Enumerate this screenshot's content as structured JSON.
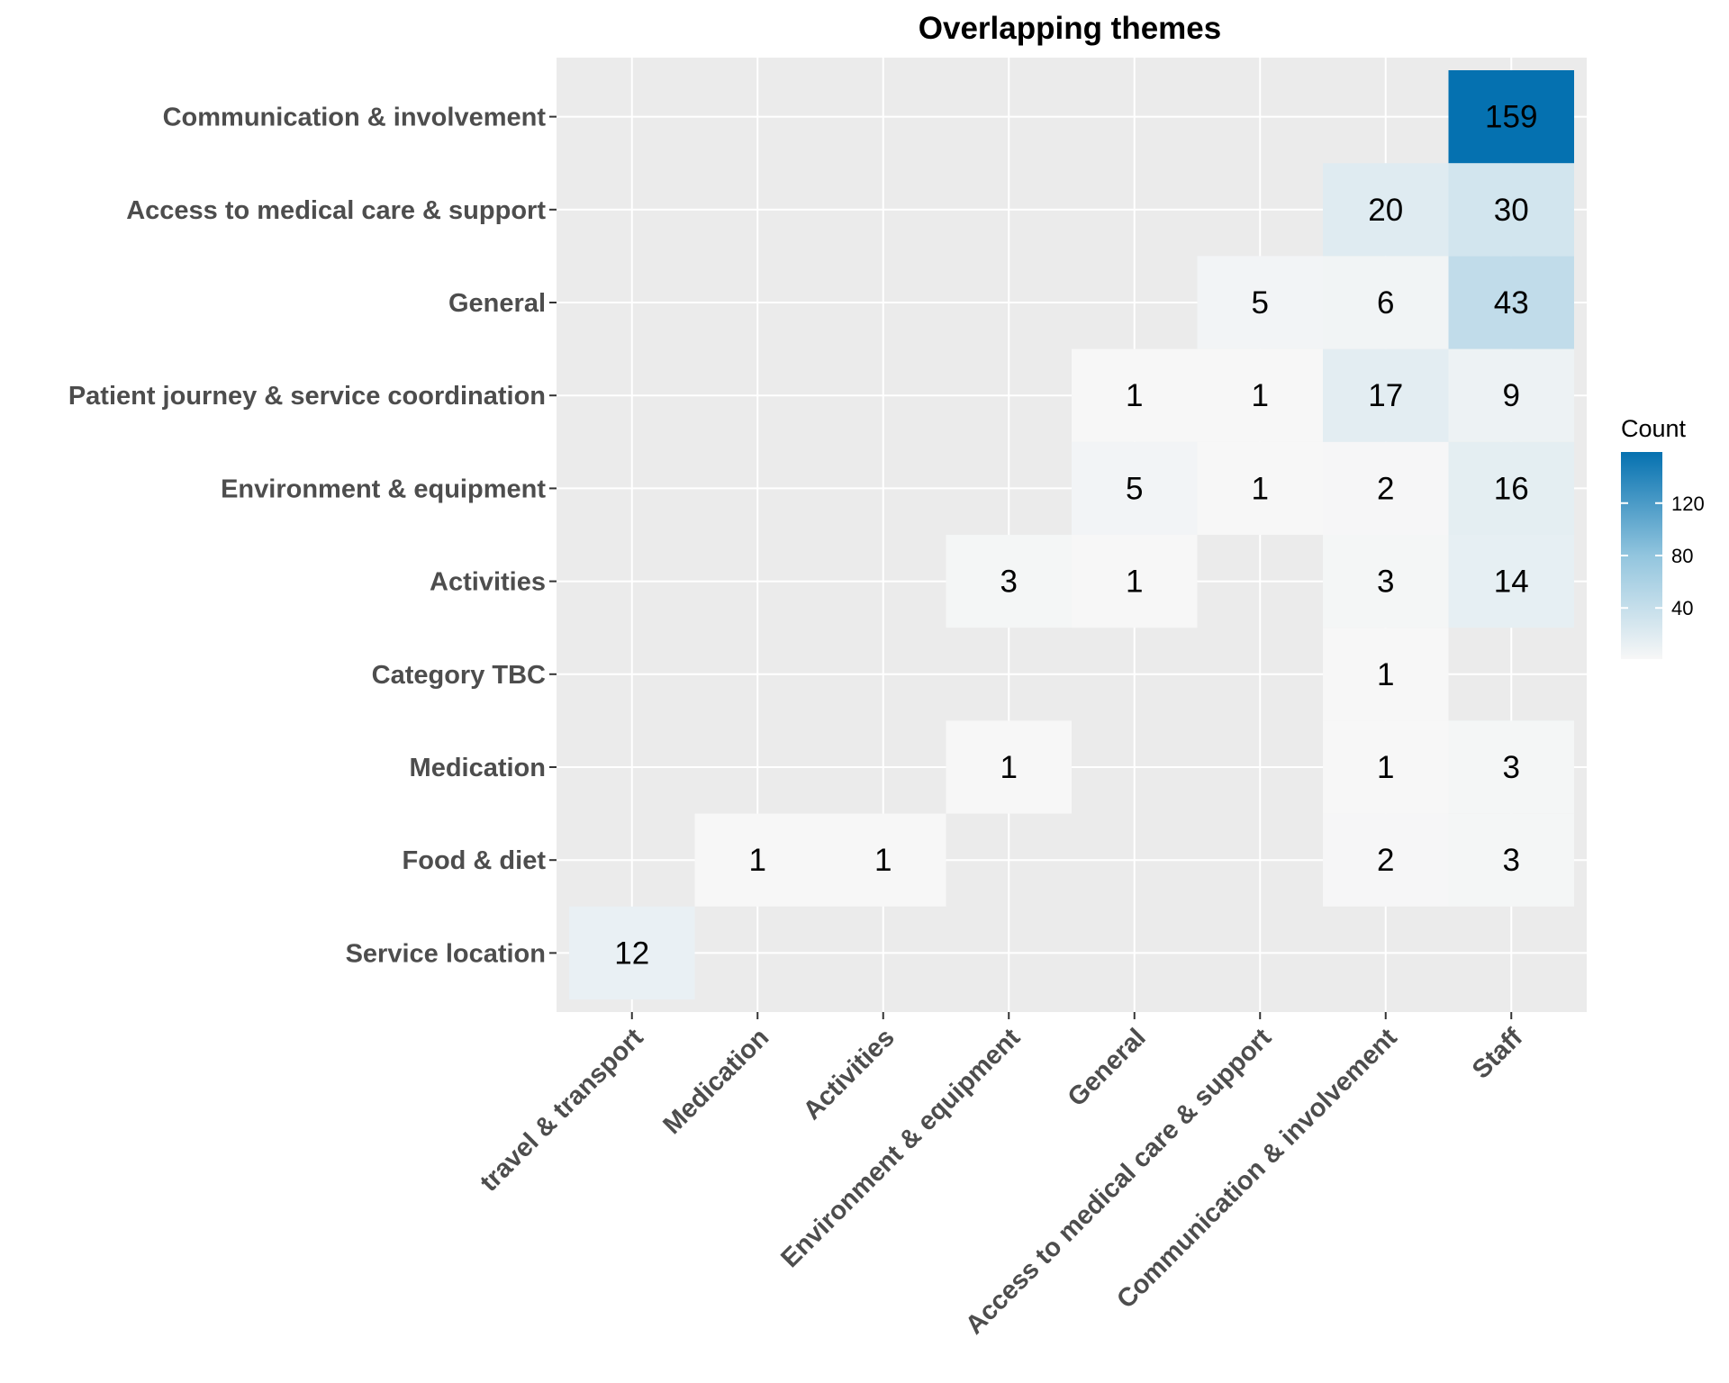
{
  "chart_data": {
    "type": "heatmap",
    "title": "Overlapping themes",
    "xlabel": "",
    "ylabel": "",
    "x_categories": [
      "travel & transport",
      "Medication",
      "Activities",
      "Environment & equipment",
      "General",
      "Access to medical care & support",
      "Communication & involvement",
      "Staff"
    ],
    "y_categories": [
      "Service location",
      "Food & diet",
      "Medication",
      "Category TBC",
      "Activities",
      "Environment & equipment",
      "Patient journey & service coordination",
      "General",
      "Access to medical care & support",
      "Communication & involvement"
    ],
    "cells": [
      {
        "x": "travel & transport",
        "y": "Service location",
        "value": 12
      },
      {
        "x": "Medication",
        "y": "Food & diet",
        "value": 1
      },
      {
        "x": "Activities",
        "y": "Food & diet",
        "value": 1
      },
      {
        "x": "Communication & involvement",
        "y": "Food & diet",
        "value": 2
      },
      {
        "x": "Staff",
        "y": "Food & diet",
        "value": 3
      },
      {
        "x": "Environment & equipment",
        "y": "Medication",
        "value": 1
      },
      {
        "x": "Communication & involvement",
        "y": "Medication",
        "value": 1
      },
      {
        "x": "Staff",
        "y": "Medication",
        "value": 3
      },
      {
        "x": "Communication & involvement",
        "y": "Category TBC",
        "value": 1
      },
      {
        "x": "Environment & equipment",
        "y": "Activities",
        "value": 3
      },
      {
        "x": "General",
        "y": "Activities",
        "value": 1
      },
      {
        "x": "Communication & involvement",
        "y": "Activities",
        "value": 3
      },
      {
        "x": "Staff",
        "y": "Activities",
        "value": 14
      },
      {
        "x": "General",
        "y": "Environment & equipment",
        "value": 5
      },
      {
        "x": "Access to medical care & support",
        "y": "Environment & equipment",
        "value": 1
      },
      {
        "x": "Communication & involvement",
        "y": "Environment & equipment",
        "value": 2
      },
      {
        "x": "Staff",
        "y": "Environment & equipment",
        "value": 16
      },
      {
        "x": "General",
        "y": "Patient journey & service coordination",
        "value": 1
      },
      {
        "x": "Access to medical care & support",
        "y": "Patient journey & service coordination",
        "value": 1
      },
      {
        "x": "Communication & involvement",
        "y": "Patient journey & service coordination",
        "value": 17
      },
      {
        "x": "Staff",
        "y": "Patient journey & service coordination",
        "value": 9
      },
      {
        "x": "Access to medical care & support",
        "y": "General",
        "value": 5
      },
      {
        "x": "Communication & involvement",
        "y": "General",
        "value": 6
      },
      {
        "x": "Staff",
        "y": "General",
        "value": 43
      },
      {
        "x": "Communication & involvement",
        "y": "Access to medical care & support",
        "value": 20
      },
      {
        "x": "Staff",
        "y": "Access to medical care & support",
        "value": 30
      },
      {
        "x": "Staff",
        "y": "Communication & involvement",
        "value": 159
      }
    ],
    "legend": {
      "title": "Count",
      "ticks": [
        40,
        80,
        120
      ],
      "range": [
        1,
        159
      ],
      "position": "right"
    },
    "colors": {
      "low": "#f7f7f7",
      "high": "#0571b0",
      "panel_background": "#ebebeb",
      "grid": "#ffffff"
    },
    "grid": true
  }
}
